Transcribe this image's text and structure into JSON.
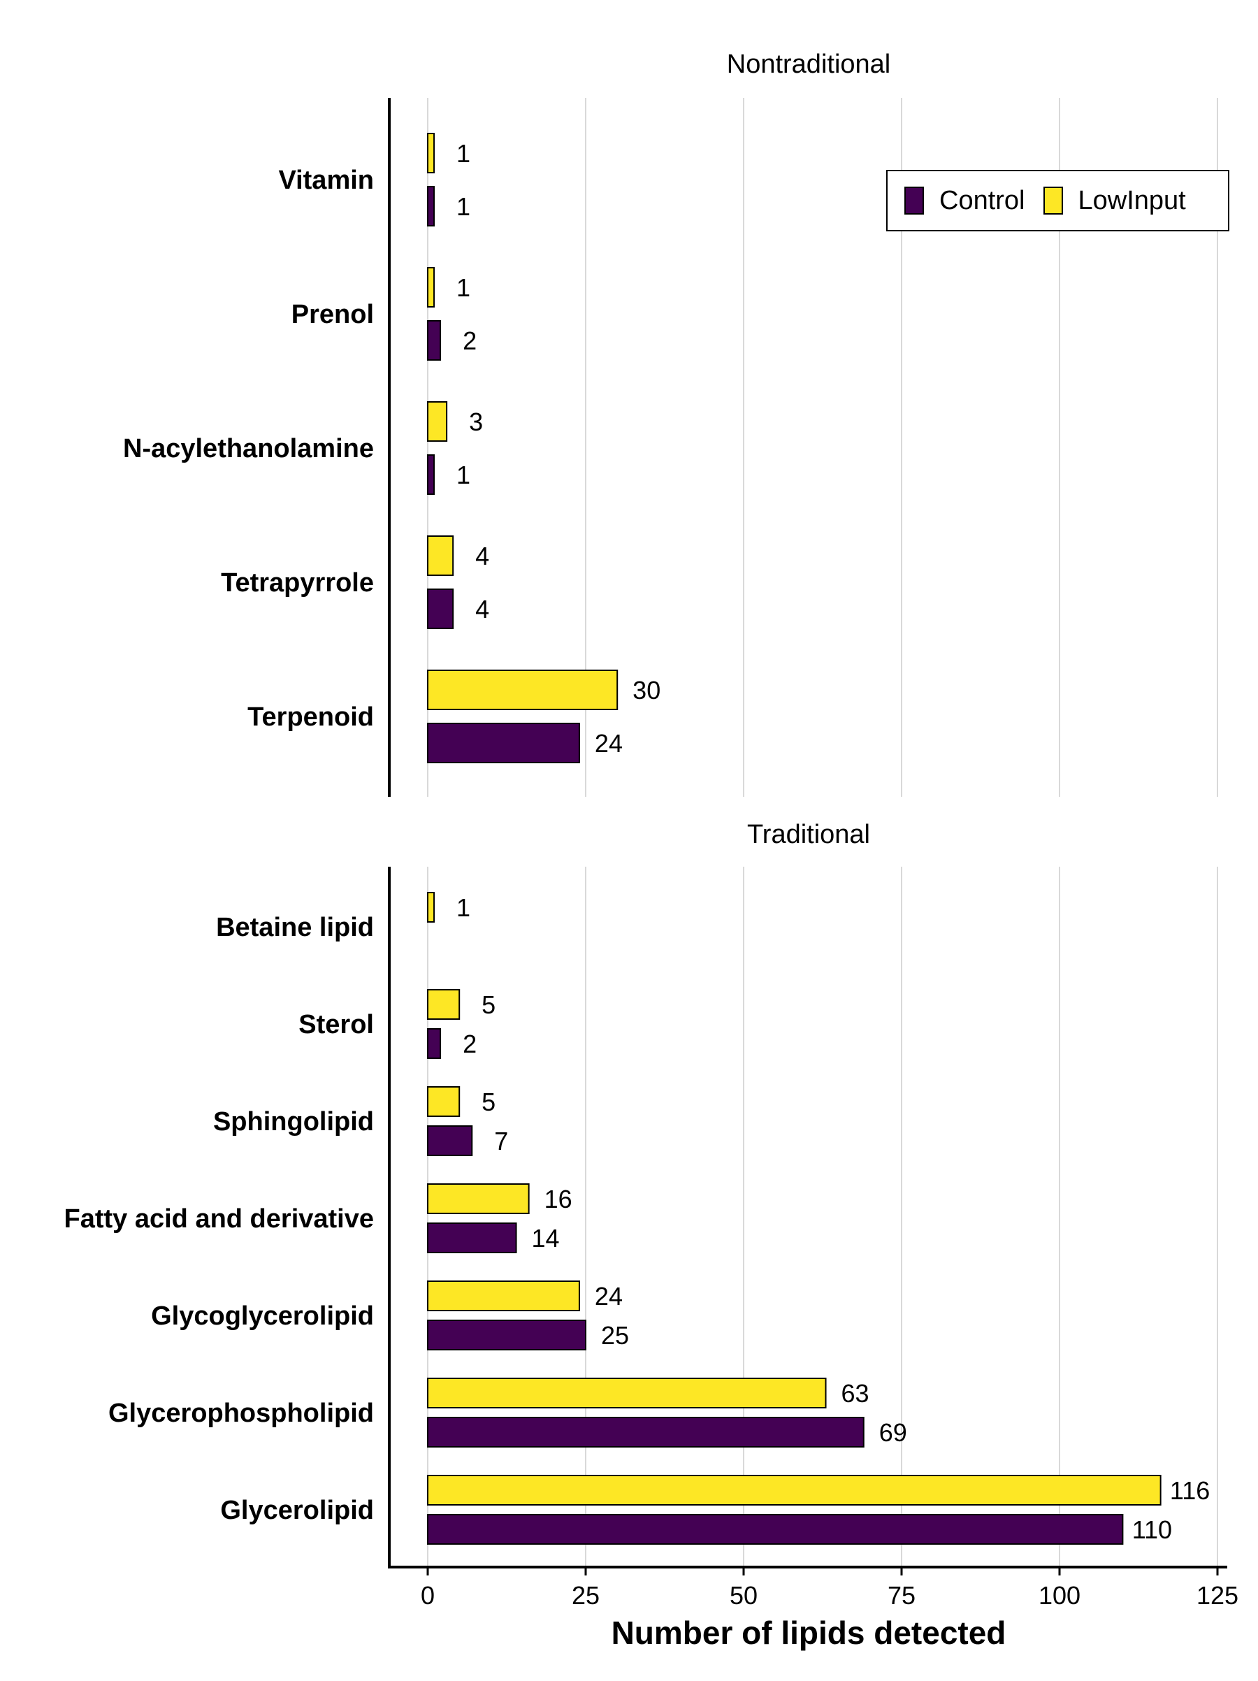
{
  "chart_data": {
    "type": "bar",
    "orientation": "horizontal",
    "xlabel": "Number of lipids detected",
    "xlim": [
      0,
      125
    ],
    "xticks": [
      0,
      25,
      50,
      75,
      100,
      125
    ],
    "grid": "vertical",
    "legend": {
      "placement": "top-right",
      "entries": [
        {
          "name": "Control",
          "color": "#440154"
        },
        {
          "name": "LowInput",
          "color": "#fde725"
        }
      ]
    },
    "panels": [
      {
        "title": "Nontraditional",
        "categories": [
          "Vitamin",
          "Prenol",
          "N-acylethanolamine",
          "Tetrapyrrole",
          "Terpenoid"
        ],
        "series": [
          {
            "name": "LowInput",
            "values": [
              1,
              1,
              3,
              4,
              30
            ]
          },
          {
            "name": "Control",
            "values": [
              1,
              2,
              1,
              4,
              24
            ]
          }
        ]
      },
      {
        "title": "Traditional",
        "categories": [
          "Betaine lipid",
          "Sterol",
          "Sphingolipid",
          "Fatty acid and derivative",
          "Glycoglycerolipid",
          "Glycerophospholipid",
          "Glycerolipid"
        ],
        "series": [
          {
            "name": "LowInput",
            "values": [
              1,
              5,
              5,
              16,
              24,
              63,
              116
            ]
          },
          {
            "name": "Control",
            "values": [
              null,
              2,
              7,
              14,
              25,
              69,
              110
            ]
          }
        ]
      }
    ]
  }
}
